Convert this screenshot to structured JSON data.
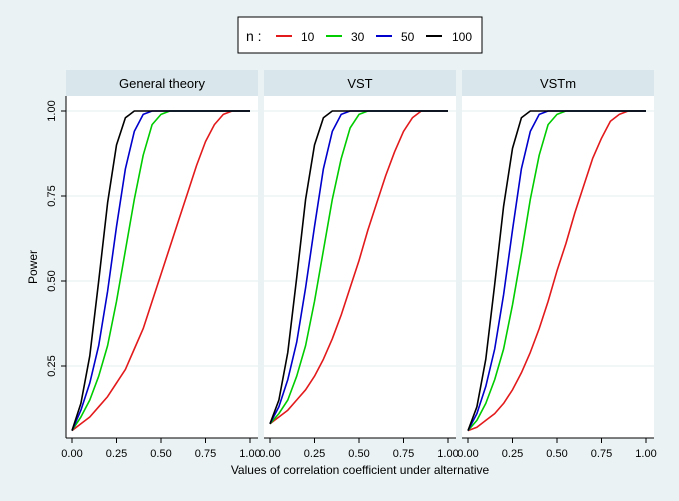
{
  "colors": {
    "background": "#eaf2f3",
    "panel_background": "#ffffff",
    "strip_background": "#d9e6eb",
    "grid": "#e3ecef",
    "n10": "#e31a1c",
    "n30": "#00cc00",
    "n50": "#0000cc",
    "n100": "#000000"
  },
  "chart_data": {
    "type": "line",
    "title": "",
    "xlabel": "Values of correlation coefficient under alternative",
    "ylabel": "Power",
    "xlim": [
      0,
      1
    ],
    "ylim": [
      0.05,
      1.0
    ],
    "x_ticks": [
      "0.00",
      "0.25",
      "0.50",
      "0.75",
      "1.00"
    ],
    "y_ticks": [
      "0.25",
      "0.50",
      "0.75",
      "1.00"
    ],
    "grid": true,
    "legend": {
      "title": "n :",
      "position": "top",
      "entries": [
        "10",
        "30",
        "50",
        "100"
      ]
    },
    "x": [
      0.0,
      0.05,
      0.1,
      0.15,
      0.2,
      0.25,
      0.3,
      0.35,
      0.4,
      0.45,
      0.5,
      0.55,
      0.6,
      0.65,
      0.7,
      0.75,
      0.8,
      0.85,
      0.9,
      0.95,
      1.0
    ],
    "panels": [
      {
        "title": "General theory",
        "series": [
          {
            "name": "10",
            "values": [
              0.06,
              0.08,
              0.1,
              0.13,
              0.16,
              0.2,
              0.24,
              0.3,
              0.36,
              0.44,
              0.52,
              0.6,
              0.68,
              0.76,
              0.84,
              0.91,
              0.96,
              0.99,
              1.0,
              1.0,
              1.0
            ]
          },
          {
            "name": "30",
            "values": [
              0.06,
              0.1,
              0.15,
              0.22,
              0.31,
              0.44,
              0.59,
              0.74,
              0.87,
              0.96,
              0.99,
              1.0,
              1.0,
              1.0,
              1.0,
              1.0,
              1.0,
              1.0,
              1.0,
              1.0,
              1.0
            ]
          },
          {
            "name": "50",
            "values": [
              0.06,
              0.12,
              0.2,
              0.31,
              0.47,
              0.66,
              0.83,
              0.94,
              0.99,
              1.0,
              1.0,
              1.0,
              1.0,
              1.0,
              1.0,
              1.0,
              1.0,
              1.0,
              1.0,
              1.0,
              1.0
            ]
          },
          {
            "name": "100",
            "values": [
              0.06,
              0.14,
              0.28,
              0.5,
              0.73,
              0.9,
              0.98,
              1.0,
              1.0,
              1.0,
              1.0,
              1.0,
              1.0,
              1.0,
              1.0,
              1.0,
              1.0,
              1.0,
              1.0,
              1.0,
              1.0
            ]
          }
        ]
      },
      {
        "title": "VST",
        "series": [
          {
            "name": "10",
            "values": [
              0.08,
              0.1,
              0.12,
              0.15,
              0.18,
              0.22,
              0.27,
              0.33,
              0.4,
              0.48,
              0.56,
              0.65,
              0.73,
              0.81,
              0.88,
              0.94,
              0.98,
              1.0,
              1.0,
              1.0,
              1.0
            ]
          },
          {
            "name": "30",
            "values": [
              0.08,
              0.11,
              0.15,
              0.22,
              0.31,
              0.44,
              0.59,
              0.74,
              0.86,
              0.95,
              0.99,
              1.0,
              1.0,
              1.0,
              1.0,
              1.0,
              1.0,
              1.0,
              1.0,
              1.0,
              1.0
            ]
          },
          {
            "name": "50",
            "values": [
              0.08,
              0.13,
              0.21,
              0.32,
              0.48,
              0.66,
              0.83,
              0.94,
              0.99,
              1.0,
              1.0,
              1.0,
              1.0,
              1.0,
              1.0,
              1.0,
              1.0,
              1.0,
              1.0,
              1.0,
              1.0
            ]
          },
          {
            "name": "100",
            "values": [
              0.08,
              0.15,
              0.29,
              0.51,
              0.74,
              0.9,
              0.98,
              1.0,
              1.0,
              1.0,
              1.0,
              1.0,
              1.0,
              1.0,
              1.0,
              1.0,
              1.0,
              1.0,
              1.0,
              1.0,
              1.0
            ]
          }
        ]
      },
      {
        "title": "VSTm",
        "series": [
          {
            "name": "10",
            "values": [
              0.06,
              0.07,
              0.09,
              0.11,
              0.14,
              0.18,
              0.23,
              0.29,
              0.36,
              0.44,
              0.53,
              0.61,
              0.7,
              0.78,
              0.86,
              0.92,
              0.97,
              0.99,
              1.0,
              1.0,
              1.0
            ]
          },
          {
            "name": "30",
            "values": [
              0.06,
              0.09,
              0.14,
              0.21,
              0.3,
              0.43,
              0.58,
              0.74,
              0.87,
              0.96,
              0.99,
              1.0,
              1.0,
              1.0,
              1.0,
              1.0,
              1.0,
              1.0,
              1.0,
              1.0,
              1.0
            ]
          },
          {
            "name": "50",
            "values": [
              0.06,
              0.11,
              0.19,
              0.3,
              0.46,
              0.65,
              0.83,
              0.94,
              0.99,
              1.0,
              1.0,
              1.0,
              1.0,
              1.0,
              1.0,
              1.0,
              1.0,
              1.0,
              1.0,
              1.0,
              1.0
            ]
          },
          {
            "name": "100",
            "values": [
              0.06,
              0.13,
              0.27,
              0.49,
              0.72,
              0.89,
              0.98,
              1.0,
              1.0,
              1.0,
              1.0,
              1.0,
              1.0,
              1.0,
              1.0,
              1.0,
              1.0,
              1.0,
              1.0,
              1.0,
              1.0
            ]
          }
        ]
      }
    ]
  }
}
